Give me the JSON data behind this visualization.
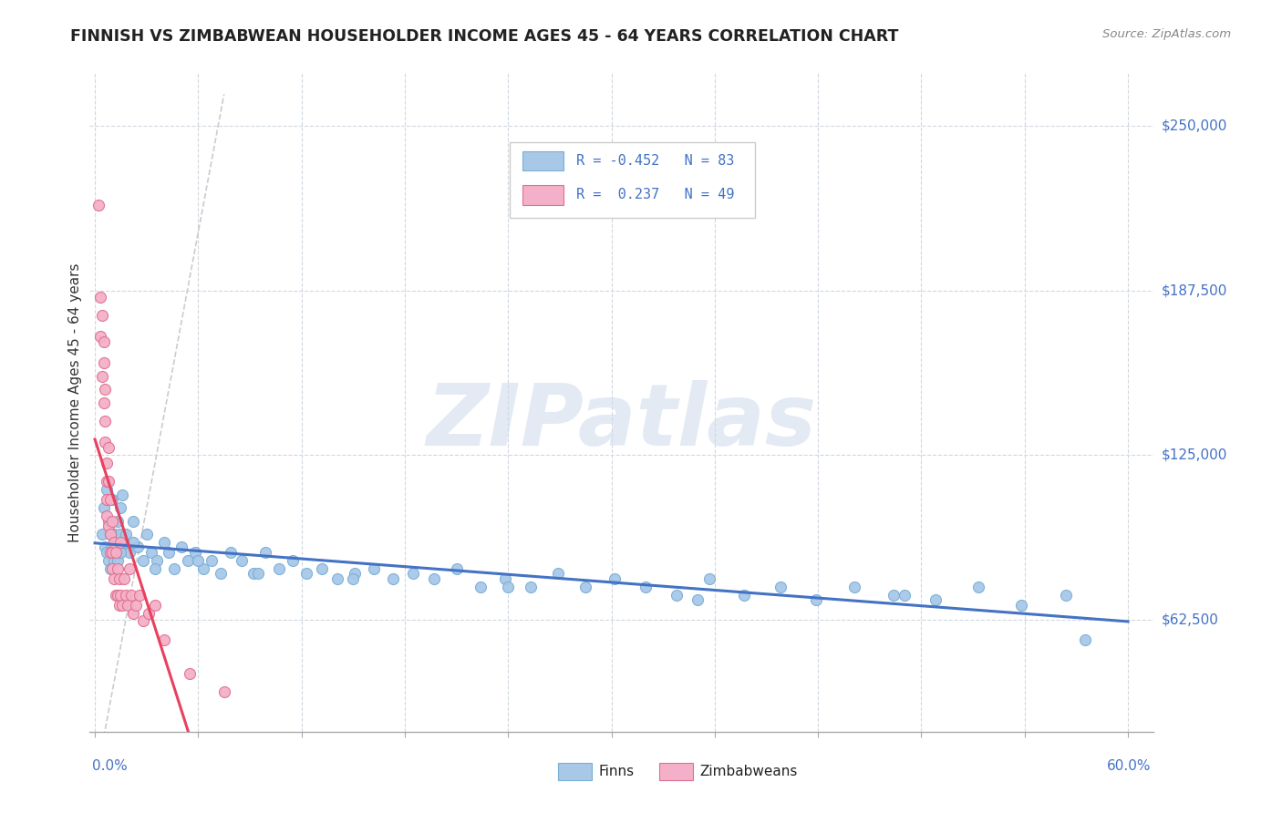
{
  "title": "FINNISH VS ZIMBABWEAN HOUSEHOLDER INCOME AGES 45 - 64 YEARS CORRELATION CHART",
  "source": "Source: ZipAtlas.com",
  "ylabel": "Householder Income Ages 45 - 64 years",
  "ytick_labels": [
    "$62,500",
    "$125,000",
    "$187,500",
    "$250,000"
  ],
  "ytick_values": [
    62500,
    125000,
    187500,
    250000
  ],
  "ylim": [
    20000,
    270000
  ],
  "xlim": [
    -0.003,
    0.615
  ],
  "finn_color": "#a8c8e8",
  "finn_edge_color": "#7aafd4",
  "zimb_color": "#f4b0c8",
  "zimb_edge_color": "#e07090",
  "trend_finn_color": "#4472c4",
  "trend_zimb_color": "#e84060",
  "diag_color": "#cccccc",
  "finn_R": "-0.452",
  "finn_N": "83",
  "zimb_R": " 0.237",
  "zimb_N": "49",
  "watermark": "ZIPatlas",
  "finn_x": [
    0.004,
    0.005,
    0.006,
    0.007,
    0.007,
    0.008,
    0.008,
    0.009,
    0.009,
    0.01,
    0.01,
    0.011,
    0.011,
    0.012,
    0.012,
    0.013,
    0.013,
    0.014,
    0.014,
    0.015,
    0.016,
    0.017,
    0.018,
    0.02,
    0.022,
    0.025,
    0.028,
    0.03,
    0.033,
    0.036,
    0.04,
    0.043,
    0.046,
    0.05,
    0.054,
    0.058,
    0.063,
    0.068,
    0.073,
    0.079,
    0.085,
    0.092,
    0.099,
    0.107,
    0.115,
    0.123,
    0.132,
    0.141,
    0.151,
    0.162,
    0.173,
    0.185,
    0.197,
    0.21,
    0.224,
    0.238,
    0.253,
    0.269,
    0.285,
    0.302,
    0.32,
    0.338,
    0.357,
    0.377,
    0.398,
    0.419,
    0.441,
    0.464,
    0.488,
    0.513,
    0.538,
    0.564,
    0.009,
    0.015,
    0.022,
    0.035,
    0.06,
    0.095,
    0.15,
    0.24,
    0.35,
    0.47,
    0.575
  ],
  "finn_y": [
    95000,
    105000,
    90000,
    112000,
    88000,
    100000,
    85000,
    95000,
    82000,
    108000,
    90000,
    95000,
    85000,
    92000,
    88000,
    100000,
    85000,
    95000,
    88000,
    105000,
    110000,
    92000,
    95000,
    88000,
    100000,
    90000,
    85000,
    95000,
    88000,
    85000,
    92000,
    88000,
    82000,
    90000,
    85000,
    88000,
    82000,
    85000,
    80000,
    88000,
    85000,
    80000,
    88000,
    82000,
    85000,
    80000,
    82000,
    78000,
    80000,
    82000,
    78000,
    80000,
    78000,
    82000,
    75000,
    78000,
    75000,
    80000,
    75000,
    78000,
    75000,
    72000,
    78000,
    72000,
    75000,
    70000,
    75000,
    72000,
    70000,
    75000,
    68000,
    72000,
    95000,
    88000,
    92000,
    82000,
    85000,
    80000,
    78000,
    75000,
    70000,
    72000,
    55000
  ],
  "zimb_x": [
    0.002,
    0.003,
    0.003,
    0.004,
    0.004,
    0.005,
    0.005,
    0.005,
    0.006,
    0.006,
    0.006,
    0.007,
    0.007,
    0.007,
    0.007,
    0.008,
    0.008,
    0.008,
    0.009,
    0.009,
    0.009,
    0.01,
    0.01,
    0.01,
    0.011,
    0.011,
    0.012,
    0.012,
    0.013,
    0.013,
    0.014,
    0.014,
    0.015,
    0.015,
    0.016,
    0.017,
    0.018,
    0.019,
    0.02,
    0.021,
    0.022,
    0.024,
    0.026,
    0.028,
    0.031,
    0.035,
    0.04,
    0.055,
    0.075
  ],
  "zimb_y": [
    220000,
    185000,
    170000,
    178000,
    155000,
    168000,
    145000,
    160000,
    150000,
    138000,
    130000,
    122000,
    115000,
    108000,
    102000,
    128000,
    115000,
    98000,
    108000,
    95000,
    88000,
    100000,
    88000,
    82000,
    92000,
    78000,
    88000,
    72000,
    82000,
    72000,
    78000,
    68000,
    92000,
    72000,
    68000,
    78000,
    72000,
    68000,
    82000,
    72000,
    65000,
    68000,
    72000,
    62000,
    65000,
    68000,
    55000,
    42000,
    35000
  ]
}
